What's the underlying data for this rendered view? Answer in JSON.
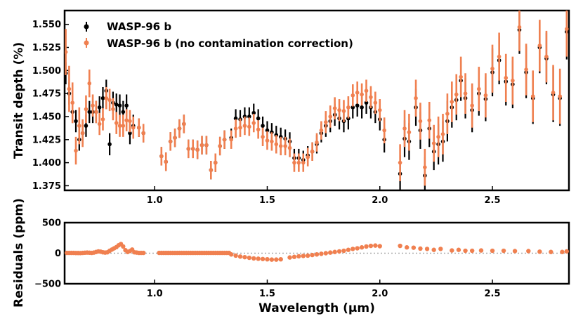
{
  "chart_data": [
    {
      "type": "scatter",
      "name": "transit-spectrum",
      "ylabel": "Transit depth (%)",
      "xlim": [
        0.6,
        2.84
      ],
      "ylim": [
        1.37,
        1.565
      ],
      "yticks": [
        1.375,
        1.4,
        1.425,
        1.45,
        1.475,
        1.5,
        1.525,
        1.55
      ],
      "ytick_labels": [
        "1.375",
        "1.400",
        "1.425",
        "1.450",
        "1.475",
        "1.500",
        "1.525",
        "1.550"
      ],
      "xticks": [
        1.0,
        1.5,
        2.0,
        2.5
      ],
      "xtick_labels": [
        "1.0",
        "1.5",
        "2.0",
        "2.5"
      ],
      "legend_position": "top-left",
      "series": [
        {
          "name": "WASP-96 b",
          "color": "#000000",
          "x": [
            0.605,
            0.62,
            0.635,
            0.65,
            0.665,
            0.68,
            0.695,
            0.71,
            0.725,
            0.74,
            0.755,
            0.77,
            0.785,
            0.8,
            0.815,
            0.83,
            0.845,
            0.86,
            0.875,
            0.89,
            0.905,
            0.93,
            0.95,
            1.03,
            1.05,
            1.07,
            1.09,
            1.11,
            1.13,
            1.15,
            1.17,
            1.19,
            1.21,
            1.23,
            1.25,
            1.27,
            1.29,
            1.31,
            1.34,
            1.36,
            1.38,
            1.4,
            1.42,
            1.44,
            1.46,
            1.48,
            1.5,
            1.52,
            1.54,
            1.56,
            1.58,
            1.6,
            1.62,
            1.64,
            1.66,
            1.68,
            1.7,
            1.72,
            1.74,
            1.76,
            1.78,
            1.8,
            1.82,
            1.84,
            1.86,
            1.88,
            1.9,
            1.92,
            1.94,
            1.96,
            1.98,
            2.0,
            2.02,
            2.09,
            2.11,
            2.13,
            2.16,
            2.18,
            2.2,
            2.22,
            2.24,
            2.26,
            2.28,
            2.3,
            2.32,
            2.34,
            2.36,
            2.38,
            2.41,
            2.44,
            2.47,
            2.5,
            2.53,
            2.56,
            2.59,
            2.62,
            2.65,
            2.68,
            2.71,
            2.74,
            2.77,
            2.8,
            2.83
          ],
          "y": [
            1.497,
            1.475,
            1.455,
            1.445,
            1.425,
            1.432,
            1.44,
            1.455,
            1.455,
            1.455,
            1.46,
            1.47,
            1.478,
            1.42,
            1.465,
            1.463,
            1.462,
            1.455,
            1.462,
            1.432,
            1.44,
            1.438,
            1.432,
            1.407,
            1.401,
            1.423,
            1.427,
            1.437,
            1.442,
            1.415,
            1.415,
            1.414,
            1.419,
            1.419,
            1.392,
            1.4,
            1.418,
            1.425,
            1.427,
            1.448,
            1.447,
            1.45,
            1.45,
            1.454,
            1.448,
            1.44,
            1.435,
            1.433,
            1.43,
            1.428,
            1.426,
            1.423,
            1.405,
            1.405,
            1.403,
            1.408,
            1.412,
            1.42,
            1.432,
            1.44,
            1.445,
            1.452,
            1.448,
            1.445,
            1.448,
            1.46,
            1.462,
            1.46,
            1.465,
            1.46,
            1.455,
            1.447,
            1.425,
            1.388,
            1.426,
            1.423,
            1.46,
            1.435,
            1.386,
            1.437,
            1.412,
            1.42,
            1.423,
            1.445,
            1.46,
            1.468,
            1.489,
            1.47,
            1.457,
            1.475,
            1.469,
            1.498,
            1.511,
            1.488,
            1.485,
            1.544,
            1.498,
            1.47,
            1.525,
            1.513,
            1.474,
            1.47,
            1.542
          ],
          "err": [
            0.012,
            0.012,
            0.012,
            0.012,
            0.012,
            0.012,
            0.012,
            0.012,
            0.012,
            0.012,
            0.012,
            0.012,
            0.012,
            0.012,
            0.012,
            0.012,
            0.012,
            0.012,
            0.012,
            0.012,
            0.012,
            0.01,
            0.01,
            0.01,
            0.01,
            0.01,
            0.01,
            0.01,
            0.01,
            0.01,
            0.01,
            0.01,
            0.01,
            0.01,
            0.01,
            0.01,
            0.01,
            0.01,
            0.01,
            0.01,
            0.01,
            0.01,
            0.01,
            0.01,
            0.01,
            0.01,
            0.01,
            0.01,
            0.01,
            0.01,
            0.01,
            0.01,
            0.01,
            0.01,
            0.01,
            0.01,
            0.01,
            0.01,
            0.01,
            0.012,
            0.012,
            0.012,
            0.012,
            0.012,
            0.012,
            0.012,
            0.012,
            0.012,
            0.012,
            0.012,
            0.012,
            0.012,
            0.014,
            0.02,
            0.02,
            0.02,
            0.02,
            0.02,
            0.02,
            0.02,
            0.02,
            0.022,
            0.022,
            0.022,
            0.022,
            0.022,
            0.022,
            0.022,
            0.024,
            0.024,
            0.024,
            0.026,
            0.026,
            0.026,
            0.026,
            0.026,
            0.028,
            0.028,
            0.028,
            0.028,
            0.03,
            0.03,
            0.03
          ]
        },
        {
          "name": "WASP-96 b (no contamination correction)",
          "color": "#f08050",
          "x": [
            0.605,
            0.62,
            0.635,
            0.65,
            0.665,
            0.68,
            0.695,
            0.71,
            0.725,
            0.74,
            0.755,
            0.77,
            0.785,
            0.8,
            0.815,
            0.83,
            0.845,
            0.86,
            0.875,
            0.89,
            0.905,
            0.93,
            0.95,
            1.03,
            1.05,
            1.07,
            1.09,
            1.11,
            1.13,
            1.15,
            1.17,
            1.19,
            1.21,
            1.23,
            1.25,
            1.27,
            1.29,
            1.31,
            1.34,
            1.36,
            1.38,
            1.4,
            1.42,
            1.44,
            1.46,
            1.48,
            1.5,
            1.52,
            1.54,
            1.56,
            1.58,
            1.6,
            1.62,
            1.64,
            1.66,
            1.68,
            1.7,
            1.72,
            1.74,
            1.76,
            1.78,
            1.8,
            1.82,
            1.84,
            1.86,
            1.88,
            1.9,
            1.92,
            1.94,
            1.96,
            1.98,
            2.0,
            2.02,
            2.09,
            2.11,
            2.13,
            2.16,
            2.18,
            2.2,
            2.22,
            2.24,
            2.26,
            2.28,
            2.3,
            2.32,
            2.34,
            2.36,
            2.38,
            2.41,
            2.44,
            2.47,
            2.5,
            2.53,
            2.56,
            2.59,
            2.62,
            2.65,
            2.68,
            2.71,
            2.74,
            2.77,
            2.8,
            2.83
          ],
          "y": [
            1.52,
            1.48,
            1.465,
            1.413,
            1.44,
            1.432,
            1.458,
            1.486,
            1.462,
            1.455,
            1.442,
            1.447,
            1.47,
            1.468,
            1.458,
            1.443,
            1.44,
            1.44,
            1.446,
            1.445,
            1.438,
            1.438,
            1.432,
            1.407,
            1.401,
            1.423,
            1.427,
            1.437,
            1.442,
            1.415,
            1.415,
            1.414,
            1.419,
            1.419,
            1.392,
            1.4,
            1.418,
            1.425,
            1.425,
            1.437,
            1.438,
            1.44,
            1.439,
            1.443,
            1.436,
            1.428,
            1.424,
            1.423,
            1.42,
            1.418,
            1.418,
            1.416,
            1.4,
            1.4,
            1.4,
            1.406,
            1.412,
            1.422,
            1.435,
            1.444,
            1.45,
            1.459,
            1.457,
            1.456,
            1.46,
            1.473,
            1.476,
            1.474,
            1.478,
            1.471,
            1.465,
            1.457,
            1.435,
            1.4,
            1.437,
            1.433,
            1.47,
            1.445,
            1.395,
            1.446,
            1.421,
            1.428,
            1.431,
            1.453,
            1.466,
            1.474,
            1.493,
            1.475,
            1.462,
            1.48,
            1.473,
            1.502,
            1.515,
            1.492,
            1.489,
            1.547,
            1.501,
            1.472,
            1.527,
            1.515,
            1.476,
            1.472,
            1.545
          ],
          "err": [
            0.025,
            0.025,
            0.022,
            0.015,
            0.02,
            0.015,
            0.015,
            0.015,
            0.012,
            0.012,
            0.012,
            0.012,
            0.012,
            0.012,
            0.012,
            0.012,
            0.012,
            0.012,
            0.012,
            0.012,
            0.012,
            0.01,
            0.01,
            0.01,
            0.01,
            0.01,
            0.01,
            0.01,
            0.01,
            0.01,
            0.01,
            0.01,
            0.01,
            0.01,
            0.01,
            0.01,
            0.01,
            0.01,
            0.01,
            0.01,
            0.01,
            0.01,
            0.01,
            0.01,
            0.01,
            0.01,
            0.01,
            0.01,
            0.01,
            0.01,
            0.01,
            0.01,
            0.01,
            0.01,
            0.01,
            0.01,
            0.01,
            0.01,
            0.01,
            0.012,
            0.012,
            0.012,
            0.012,
            0.012,
            0.012,
            0.012,
            0.012,
            0.012,
            0.012,
            0.012,
            0.012,
            0.012,
            0.014,
            0.02,
            0.02,
            0.02,
            0.02,
            0.02,
            0.02,
            0.02,
            0.02,
            0.022,
            0.022,
            0.022,
            0.022,
            0.022,
            0.022,
            0.022,
            0.024,
            0.024,
            0.024,
            0.026,
            0.026,
            0.026,
            0.026,
            0.026,
            0.028,
            0.028,
            0.028,
            0.028,
            0.03,
            0.03,
            0.03
          ]
        }
      ]
    },
    {
      "type": "scatter",
      "name": "residuals",
      "ylabel": "Residuals (ppm)",
      "xlabel": "Wavelength (μm)",
      "xlim": [
        0.6,
        2.84
      ],
      "ylim": [
        -500,
        500
      ],
      "yticks": [
        -500,
        0,
        500
      ],
      "ytick_labels": [
        "−500",
        "0",
        "500"
      ],
      "xticks": [
        1.0,
        1.5,
        2.0,
        2.5
      ],
      "xtick_labels": [
        "1.0",
        "1.5",
        "2.0",
        "2.5"
      ],
      "zero_line": true,
      "color": "#f08050",
      "x": [
        0.61,
        0.62,
        0.63,
        0.64,
        0.65,
        0.66,
        0.67,
        0.68,
        0.69,
        0.7,
        0.71,
        0.72,
        0.73,
        0.74,
        0.75,
        0.76,
        0.77,
        0.78,
        0.79,
        0.8,
        0.81,
        0.82,
        0.83,
        0.84,
        0.85,
        0.86,
        0.87,
        0.88,
        0.89,
        0.9,
        0.91,
        0.92,
        0.93,
        0.94,
        0.95,
        1.02,
        1.03,
        1.04,
        1.05,
        1.06,
        1.07,
        1.08,
        1.09,
        1.1,
        1.11,
        1.12,
        1.13,
        1.14,
        1.15,
        1.16,
        1.17,
        1.18,
        1.19,
        1.2,
        1.21,
        1.22,
        1.23,
        1.24,
        1.25,
        1.26,
        1.27,
        1.28,
        1.29,
        1.3,
        1.31,
        1.32,
        1.33,
        1.34,
        1.36,
        1.38,
        1.4,
        1.42,
        1.44,
        1.46,
        1.48,
        1.5,
        1.52,
        1.54,
        1.56,
        1.6,
        1.62,
        1.64,
        1.66,
        1.68,
        1.7,
        1.72,
        1.74,
        1.76,
        1.78,
        1.8,
        1.82,
        1.84,
        1.86,
        1.88,
        1.9,
        1.92,
        1.94,
        1.96,
        1.98,
        2.0,
        2.09,
        2.12,
        2.15,
        2.18,
        2.21,
        2.24,
        2.27,
        2.32,
        2.35,
        2.38,
        2.41,
        2.45,
        2.5,
        2.55,
        2.6,
        2.66,
        2.71,
        2.76,
        2.81,
        2.83
      ],
      "y": [
        5,
        5,
        5,
        5,
        3,
        3,
        2,
        5,
        8,
        10,
        8,
        5,
        10,
        20,
        30,
        25,
        15,
        10,
        15,
        40,
        60,
        80,
        100,
        130,
        150,
        110,
        50,
        20,
        35,
        60,
        15,
        10,
        5,
        5,
        5,
        5,
        5,
        5,
        5,
        5,
        5,
        5,
        5,
        5,
        5,
        5,
        5,
        5,
        5,
        5,
        5,
        5,
        5,
        5,
        5,
        5,
        5,
        5,
        5,
        5,
        5,
        5,
        5,
        5,
        5,
        5,
        5,
        -20,
        -40,
        -55,
        -65,
        -75,
        -85,
        -90,
        -95,
        -100,
        -105,
        -105,
        -100,
        -70,
        -60,
        -50,
        -45,
        -40,
        -30,
        -20,
        -10,
        0,
        10,
        20,
        30,
        40,
        55,
        70,
        80,
        95,
        110,
        120,
        125,
        115,
        120,
        95,
        90,
        75,
        70,
        55,
        70,
        45,
        55,
        40,
        40,
        45,
        40,
        40,
        35,
        35,
        25,
        20,
        20,
        30
      ]
    }
  ],
  "legend": {
    "items": [
      "WASP-96 b",
      "WASP-96 b (no contamination correction)"
    ]
  }
}
